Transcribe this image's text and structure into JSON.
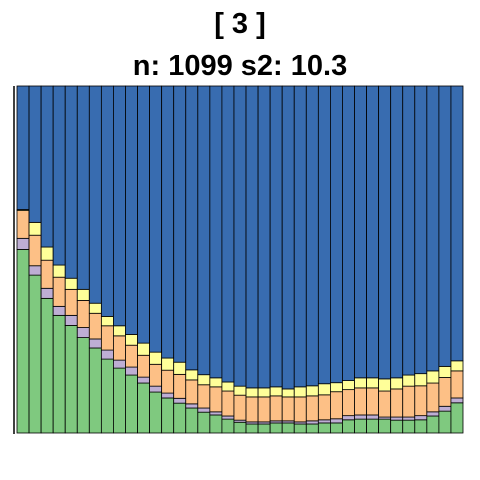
{
  "chart_data": {
    "type": "bar",
    "stacked": true,
    "proportional": true,
    "title": "[ 3 ]",
    "subtitle": "n: 1099 s2: 10.3",
    "xlabel": "",
    "ylabel": "",
    "ylim": [
      0,
      1
    ],
    "grid": false,
    "n_bars": 37,
    "colors": {
      "green": "#7fc97f",
      "purple": "#beaed4",
      "orange": "#fdc086",
      "yellow": "#ffff99",
      "blue": "#386cb0"
    },
    "series": [
      {
        "color_key": "green",
        "values": [
          0.529,
          0.455,
          0.388,
          0.339,
          0.31,
          0.275,
          0.245,
          0.213,
          0.187,
          0.167,
          0.144,
          0.118,
          0.101,
          0.086,
          0.072,
          0.06,
          0.052,
          0.04,
          0.031,
          0.026,
          0.026,
          0.029,
          0.029,
          0.026,
          0.026,
          0.029,
          0.029,
          0.038,
          0.04,
          0.04,
          0.04,
          0.037,
          0.037,
          0.038,
          0.049,
          0.063,
          0.087
        ]
      },
      {
        "color_key": "purple",
        "values": [
          0.032,
          0.027,
          0.029,
          0.026,
          0.029,
          0.029,
          0.026,
          0.026,
          0.023,
          0.023,
          0.017,
          0.017,
          0.014,
          0.014,
          0.012,
          0.012,
          0.009,
          0.009,
          0.006,
          0.006,
          0.006,
          0.006,
          0.006,
          0.006,
          0.009,
          0.009,
          0.012,
          0.012,
          0.012,
          0.012,
          0.006,
          0.009,
          0.009,
          0.012,
          0.012,
          0.014,
          0.014
        ]
      },
      {
        "color_key": "orange",
        "values": [
          0.08,
          0.088,
          0.081,
          0.084,
          0.075,
          0.078,
          0.074,
          0.07,
          0.07,
          0.063,
          0.063,
          0.063,
          0.066,
          0.069,
          0.069,
          0.067,
          0.072,
          0.072,
          0.072,
          0.072,
          0.072,
          0.072,
          0.069,
          0.072,
          0.072,
          0.072,
          0.078,
          0.075,
          0.078,
          0.078,
          0.075,
          0.081,
          0.089,
          0.086,
          0.083,
          0.083,
          0.078
        ]
      },
      {
        "color_key": "yellow",
        "values": [
          0.003,
          0.037,
          0.038,
          0.035,
          0.032,
          0.032,
          0.029,
          0.027,
          0.029,
          0.031,
          0.035,
          0.035,
          0.035,
          0.035,
          0.029,
          0.029,
          0.026,
          0.026,
          0.026,
          0.026,
          0.026,
          0.026,
          0.023,
          0.029,
          0.029,
          0.032,
          0.026,
          0.026,
          0.029,
          0.029,
          0.035,
          0.032,
          0.032,
          0.035,
          0.035,
          0.032,
          0.029
        ]
      },
      {
        "color_key": "blue",
        "values": [
          0.356,
          0.393,
          0.464,
          0.516,
          0.554,
          0.586,
          0.626,
          0.664,
          0.691,
          0.716,
          0.741,
          0.767,
          0.784,
          0.796,
          0.818,
          0.832,
          0.841,
          0.853,
          0.865,
          0.87,
          0.87,
          0.867,
          0.873,
          0.867,
          0.864,
          0.858,
          0.855,
          0.849,
          0.841,
          0.841,
          0.844,
          0.841,
          0.833,
          0.829,
          0.821,
          0.808,
          0.792
        ]
      }
    ]
  }
}
